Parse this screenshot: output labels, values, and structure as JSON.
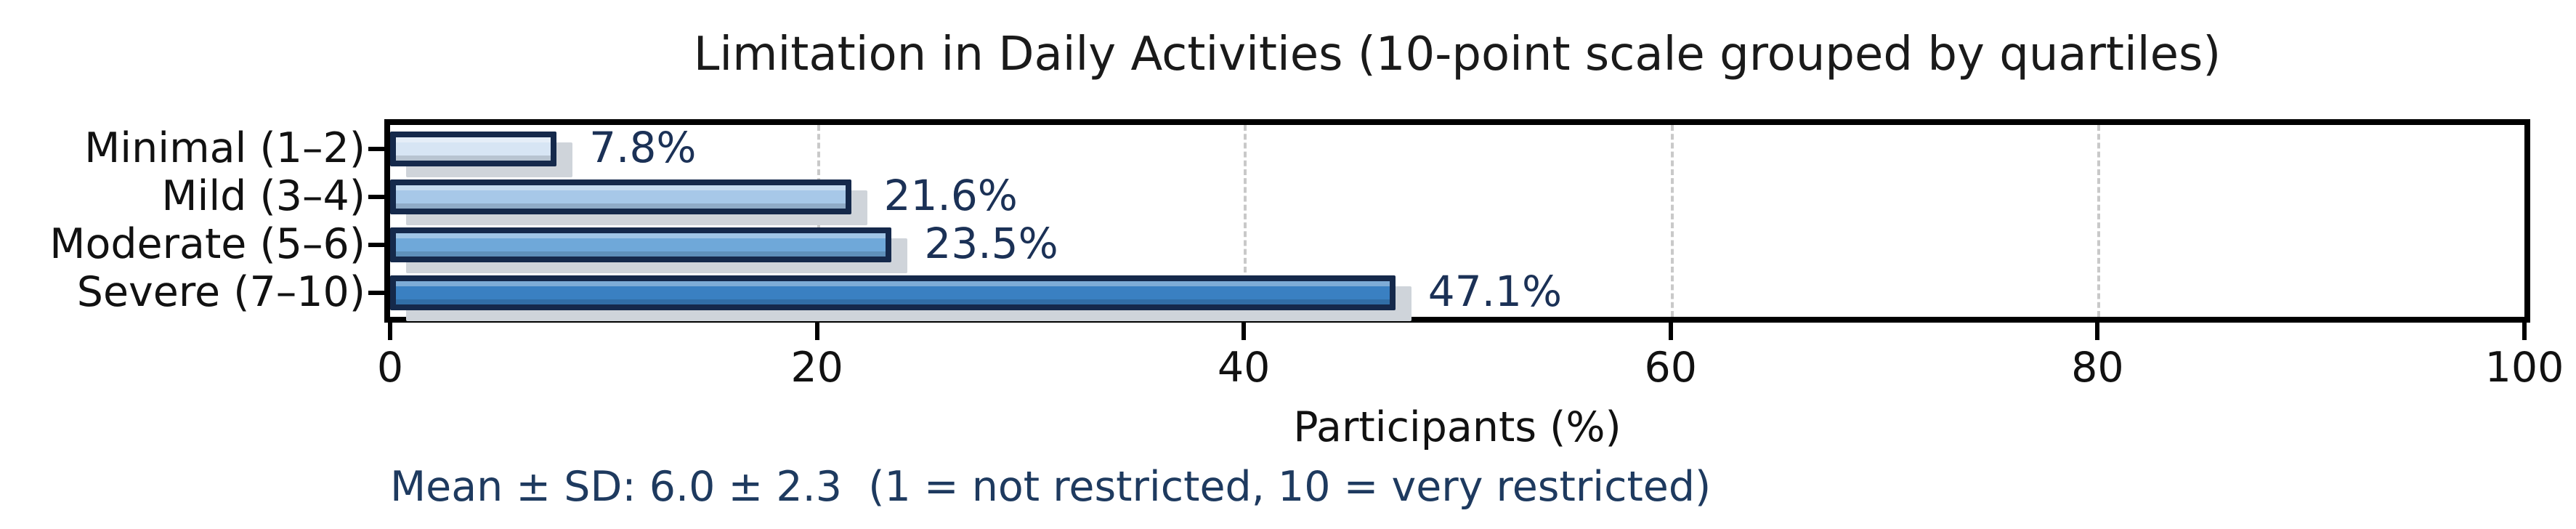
{
  "figure": {
    "title": "Limitation in Daily Activities (10-point scale grouped by quartiles)",
    "xlabel": "Participants (%)",
    "annotation": "Mean ± SD: 6.0 ± 2.3  (1 = not restricted, 10 = very restricted)"
  },
  "chart_data": {
    "type": "bar",
    "orientation": "horizontal",
    "title": "Limitation in Daily Activities (10-point scale grouped by quartiles)",
    "xlabel": "Participants (%)",
    "ylabel": "",
    "categories": [
      "Minimal (1–2)",
      "Mild (3–4)",
      "Moderate (5–6)",
      "Severe (7–10)"
    ],
    "values": [
      7.8,
      21.6,
      23.5,
      47.1
    ],
    "bar_labels": [
      "7.8%",
      "21.6%",
      "23.5%",
      "47.1%"
    ],
    "xlim": [
      0,
      100
    ],
    "xticks": [
      0,
      20,
      40,
      60,
      80,
      100
    ],
    "grid": "vertical dashed gridlines at x ticks",
    "legend": "none",
    "annotation": "Mean ± SD: 6.0 ± 2.3  (1 = not restricted, 10 = very restricted)",
    "colors": {
      "bar_fills": [
        "#d7e5f4",
        "#a7c8e8",
        "#6fa8d9",
        "#3a80c2"
      ],
      "bar_edge": "#15294b",
      "value_label": "#1b3156",
      "annotation_text": "#1e3a5f",
      "gridline": "#c9c9c9",
      "shadow": "#cfd4da",
      "axis_text": "#111111"
    }
  }
}
